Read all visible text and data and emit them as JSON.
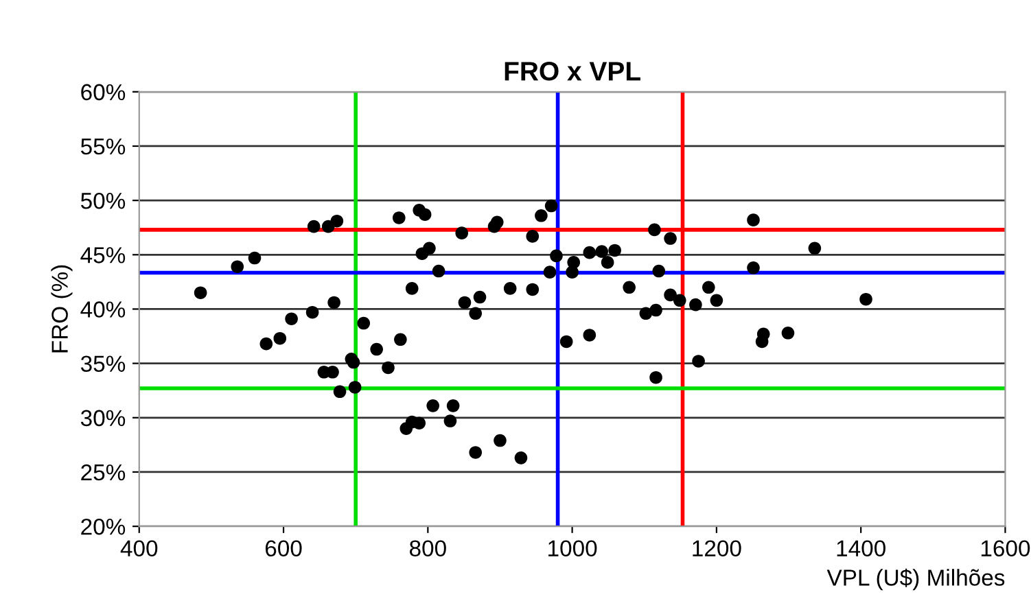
{
  "chart_data": {
    "type": "scatter",
    "title": "FRO x VPL",
    "xlabel": "VPL (U$) Milhões",
    "ylabel": "FRO (%)",
    "x": [
      485,
      536,
      560,
      576,
      595,
      611,
      640,
      642,
      662,
      674,
      670,
      656,
      668,
      678,
      694,
      697,
      699,
      711,
      729,
      745,
      760,
      762,
      770,
      778,
      788,
      778,
      788,
      796,
      792,
      802,
      815,
      807,
      835,
      831,
      847,
      851,
      866,
      872,
      866,
      896,
      892,
      900,
      914,
      929,
      971,
      957,
      945,
      978,
      969,
      1002,
      1000,
      1024,
      1041,
      1059,
      1049,
      1114,
      1136,
      1120,
      1079,
      945,
      1136,
      1149,
      1171,
      1189,
      1200,
      1102,
      1116,
      992,
      1024,
      1175,
      1116,
      1251,
      1251,
      1336,
      1265,
      1263,
      1299,
      1407
    ],
    "series": [
      {
        "color": "#000000",
        "values": [
          41.5,
          43.9,
          44.7,
          36.8,
          37.3,
          39.1,
          39.7,
          47.6,
          47.6,
          48.1,
          40.6,
          34.2,
          34.2,
          32.4,
          35.4,
          35.1,
          32.8,
          38.7,
          36.3,
          34.6,
          48.4,
          37.2,
          29.0,
          29.6,
          29.5,
          41.9,
          49.1,
          48.7,
          45.1,
          45.6,
          43.5,
          31.1,
          31.1,
          29.7,
          47.0,
          40.6,
          39.6,
          41.1,
          26.8,
          48.0,
          47.6,
          27.9,
          41.9,
          26.3,
          49.5,
          48.6,
          46.7,
          44.9,
          43.4,
          44.3,
          43.4,
          45.2,
          45.3,
          45.4,
          44.3,
          47.3,
          46.5,
          43.5,
          42.0,
          41.8,
          41.3,
          40.8,
          40.4,
          42.0,
          40.8,
          39.6,
          39.9,
          37.0,
          37.6,
          35.2,
          33.7,
          48.2,
          43.8,
          45.6,
          37.7,
          37.0,
          37.8,
          40.9
        ]
      }
    ],
    "marker": "circle",
    "xlim": [
      400,
      1600
    ],
    "xticks": [
      400,
      600,
      800,
      1000,
      1200,
      1400,
      1600
    ],
    "ylim": [
      20,
      60
    ],
    "yticks": [
      {
        "value": 20,
        "label": "20%"
      },
      {
        "value": 25,
        "label": "25%"
      },
      {
        "value": 30,
        "label": "30%"
      },
      {
        "value": 35,
        "label": "35%"
      },
      {
        "value": 40,
        "label": "40%"
      },
      {
        "value": 45,
        "label": "45%"
      },
      {
        "value": 50,
        "label": "50%"
      },
      {
        "value": 55,
        "label": "55%"
      },
      {
        "value": 60,
        "label": "60%"
      }
    ],
    "grid": "y",
    "ref_lines": [
      {
        "axis": "x",
        "value": 700,
        "color": "#00dd00"
      },
      {
        "axis": "x",
        "value": 980,
        "color": "#0000ff"
      },
      {
        "axis": "x",
        "value": 1153,
        "color": "#ff0000"
      },
      {
        "axis": "y",
        "value": 47.3,
        "color": "#ff0000"
      },
      {
        "axis": "y",
        "value": 43.35,
        "color": "#0000ff"
      },
      {
        "axis": "y",
        "value": 32.7,
        "color": "#00dd00"
      }
    ]
  }
}
